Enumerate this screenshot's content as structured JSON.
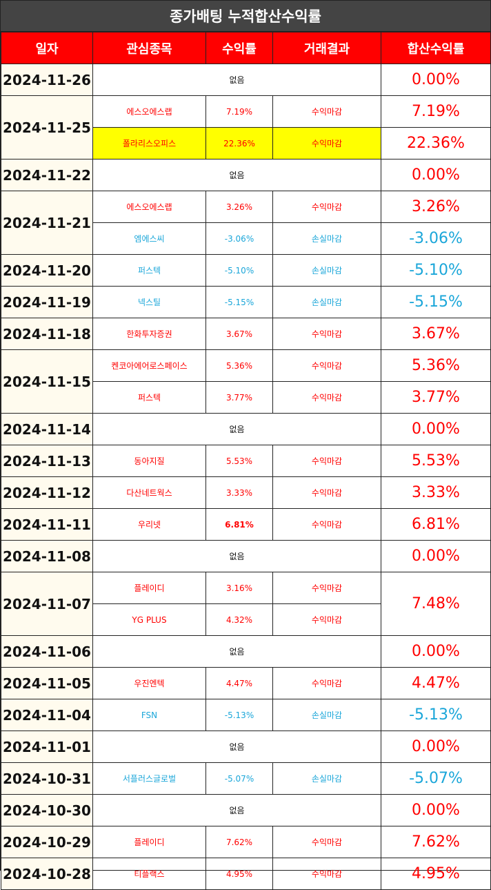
{
  "title": "종가배팅 누적합산수익률",
  "headers": [
    "일자",
    "관심종목",
    "수익률",
    "거래결과",
    "합산수익률"
  ],
  "colors": {
    "profit": "#ff0000",
    "loss": "#1aa6d9",
    "header_bg": "#ff0000",
    "title_bg": "#444444",
    "highlight": "#ffff00"
  },
  "days": [
    {
      "date": "2024-11-26",
      "total": "0.00%",
      "total_sign": "pos",
      "rows": [
        {
          "none": "없음"
        }
      ]
    },
    {
      "date": "2024-11-25",
      "total_mode": "per_row",
      "rows": [
        {
          "stock": "에스오에스랩",
          "pct": "7.19%",
          "result": "수익마감",
          "sign": "pos",
          "total": "7.19%",
          "total_sign": "pos"
        },
        {
          "stock": "폴라리스오피스",
          "pct": "22.36%",
          "result": "수익마감",
          "sign": "pos",
          "total": "22.36%",
          "total_sign": "pos",
          "highlight": true
        }
      ]
    },
    {
      "date": "2024-11-22",
      "total": "0.00%",
      "total_sign": "pos",
      "rows": [
        {
          "none": "없음"
        }
      ]
    },
    {
      "date": "2024-11-21",
      "total_mode": "per_row",
      "rows": [
        {
          "stock": "에스오에스랩",
          "pct": "3.26%",
          "result": "수익마감",
          "sign": "pos",
          "total": "3.26%",
          "total_sign": "pos"
        },
        {
          "stock": "엠에스씨",
          "pct": "-3.06%",
          "result": "손실마감",
          "sign": "neg",
          "total": "-3.06%",
          "total_sign": "neg"
        }
      ]
    },
    {
      "date": "2024-11-20",
      "total": "-5.10%",
      "total_sign": "neg",
      "rows": [
        {
          "stock": "퍼스텍",
          "pct": "-5.10%",
          "result": "손실마감",
          "sign": "neg"
        }
      ]
    },
    {
      "date": "2024-11-19",
      "total": "-5.15%",
      "total_sign": "neg",
      "rows": [
        {
          "stock": "넥스틸",
          "pct": "-5.15%",
          "result": "손실마감",
          "sign": "neg"
        }
      ]
    },
    {
      "date": "2024-11-18",
      "total": "3.67%",
      "total_sign": "pos",
      "rows": [
        {
          "stock": "한화투자증권",
          "pct": "3.67%",
          "result": "수익마감",
          "sign": "pos"
        }
      ]
    },
    {
      "date": "2024-11-15",
      "total_mode": "per_row",
      "rows": [
        {
          "stock": "켄코아에어로스페이스",
          "pct": "5.36%",
          "result": "수익마감",
          "sign": "pos",
          "total": "5.36%",
          "total_sign": "pos"
        },
        {
          "stock": "퍼스텍",
          "pct": "3.77%",
          "result": "수익마감",
          "sign": "pos",
          "total": "3.77%",
          "total_sign": "pos"
        }
      ]
    },
    {
      "date": "2024-11-14",
      "total": "0.00%",
      "total_sign": "pos",
      "rows": [
        {
          "none": "없음"
        }
      ]
    },
    {
      "date": "2024-11-13",
      "total": "5.53%",
      "total_sign": "pos",
      "rows": [
        {
          "stock": "동아지질",
          "pct": "5.53%",
          "result": "수익마감",
          "sign": "pos"
        }
      ]
    },
    {
      "date": "2024-11-12",
      "total": "3.33%",
      "total_sign": "pos",
      "rows": [
        {
          "stock": "다산네트웍스",
          "pct": "3.33%",
          "result": "수익마감",
          "sign": "pos"
        }
      ]
    },
    {
      "date": "2024-11-11",
      "total": "6.81%",
      "total_sign": "pos",
      "rows": [
        {
          "stock": "우리넷",
          "pct": "6.81%",
          "result": "수익마감",
          "sign": "pos",
          "bold": true
        }
      ]
    },
    {
      "date": "2024-11-08",
      "total": "0.00%",
      "total_sign": "pos",
      "rows": [
        {
          "none": "없음"
        }
      ]
    },
    {
      "date": "2024-11-07",
      "total": "7.48%",
      "total_sign": "pos",
      "rows": [
        {
          "stock": "플레이디",
          "pct": "3.16%",
          "result": "수익마감",
          "sign": "pos"
        },
        {
          "stock": "YG PLUS",
          "pct": "4.32%",
          "result": "수익마감",
          "sign": "pos"
        }
      ]
    },
    {
      "date": "2024-11-06",
      "total": "0.00%",
      "total_sign": "pos",
      "rows": [
        {
          "none": "없음"
        }
      ]
    },
    {
      "date": "2024-11-05",
      "total": "4.47%",
      "total_sign": "pos",
      "rows": [
        {
          "stock": "우진엔텍",
          "pct": "4.47%",
          "result": "수익마감",
          "sign": "pos"
        }
      ]
    },
    {
      "date": "2024-11-04",
      "total": "-5.13%",
      "total_sign": "neg",
      "rows": [
        {
          "stock": "FSN",
          "pct": "-5.13%",
          "result": "손실마감",
          "sign": "neg"
        }
      ]
    },
    {
      "date": "2024-11-01",
      "total": "0.00%",
      "total_sign": "pos",
      "rows": [
        {
          "none": "없음"
        }
      ]
    },
    {
      "date": "2024-10-31",
      "total": "-5.07%",
      "total_sign": "neg",
      "rows": [
        {
          "stock": "서플러스글로벌",
          "pct": "-5.07%",
          "result": "손실마감",
          "sign": "neg"
        }
      ]
    },
    {
      "date": "2024-10-30",
      "total": "0.00%",
      "total_sign": "pos",
      "rows": [
        {
          "none": "없음"
        }
      ]
    },
    {
      "date": "2024-10-29",
      "total": "7.62%",
      "total_sign": "pos",
      "rows": [
        {
          "stock": "플레이디",
          "pct": "7.62%",
          "result": "수익마감",
          "sign": "pos"
        }
      ]
    },
    {
      "date": "2024-10-28",
      "total": "4.95%",
      "total_sign": "pos",
      "rows": [
        {
          "stock": "티플랙스",
          "pct": "4.95%",
          "result": "수익마감",
          "sign": "pos"
        }
      ]
    }
  ]
}
